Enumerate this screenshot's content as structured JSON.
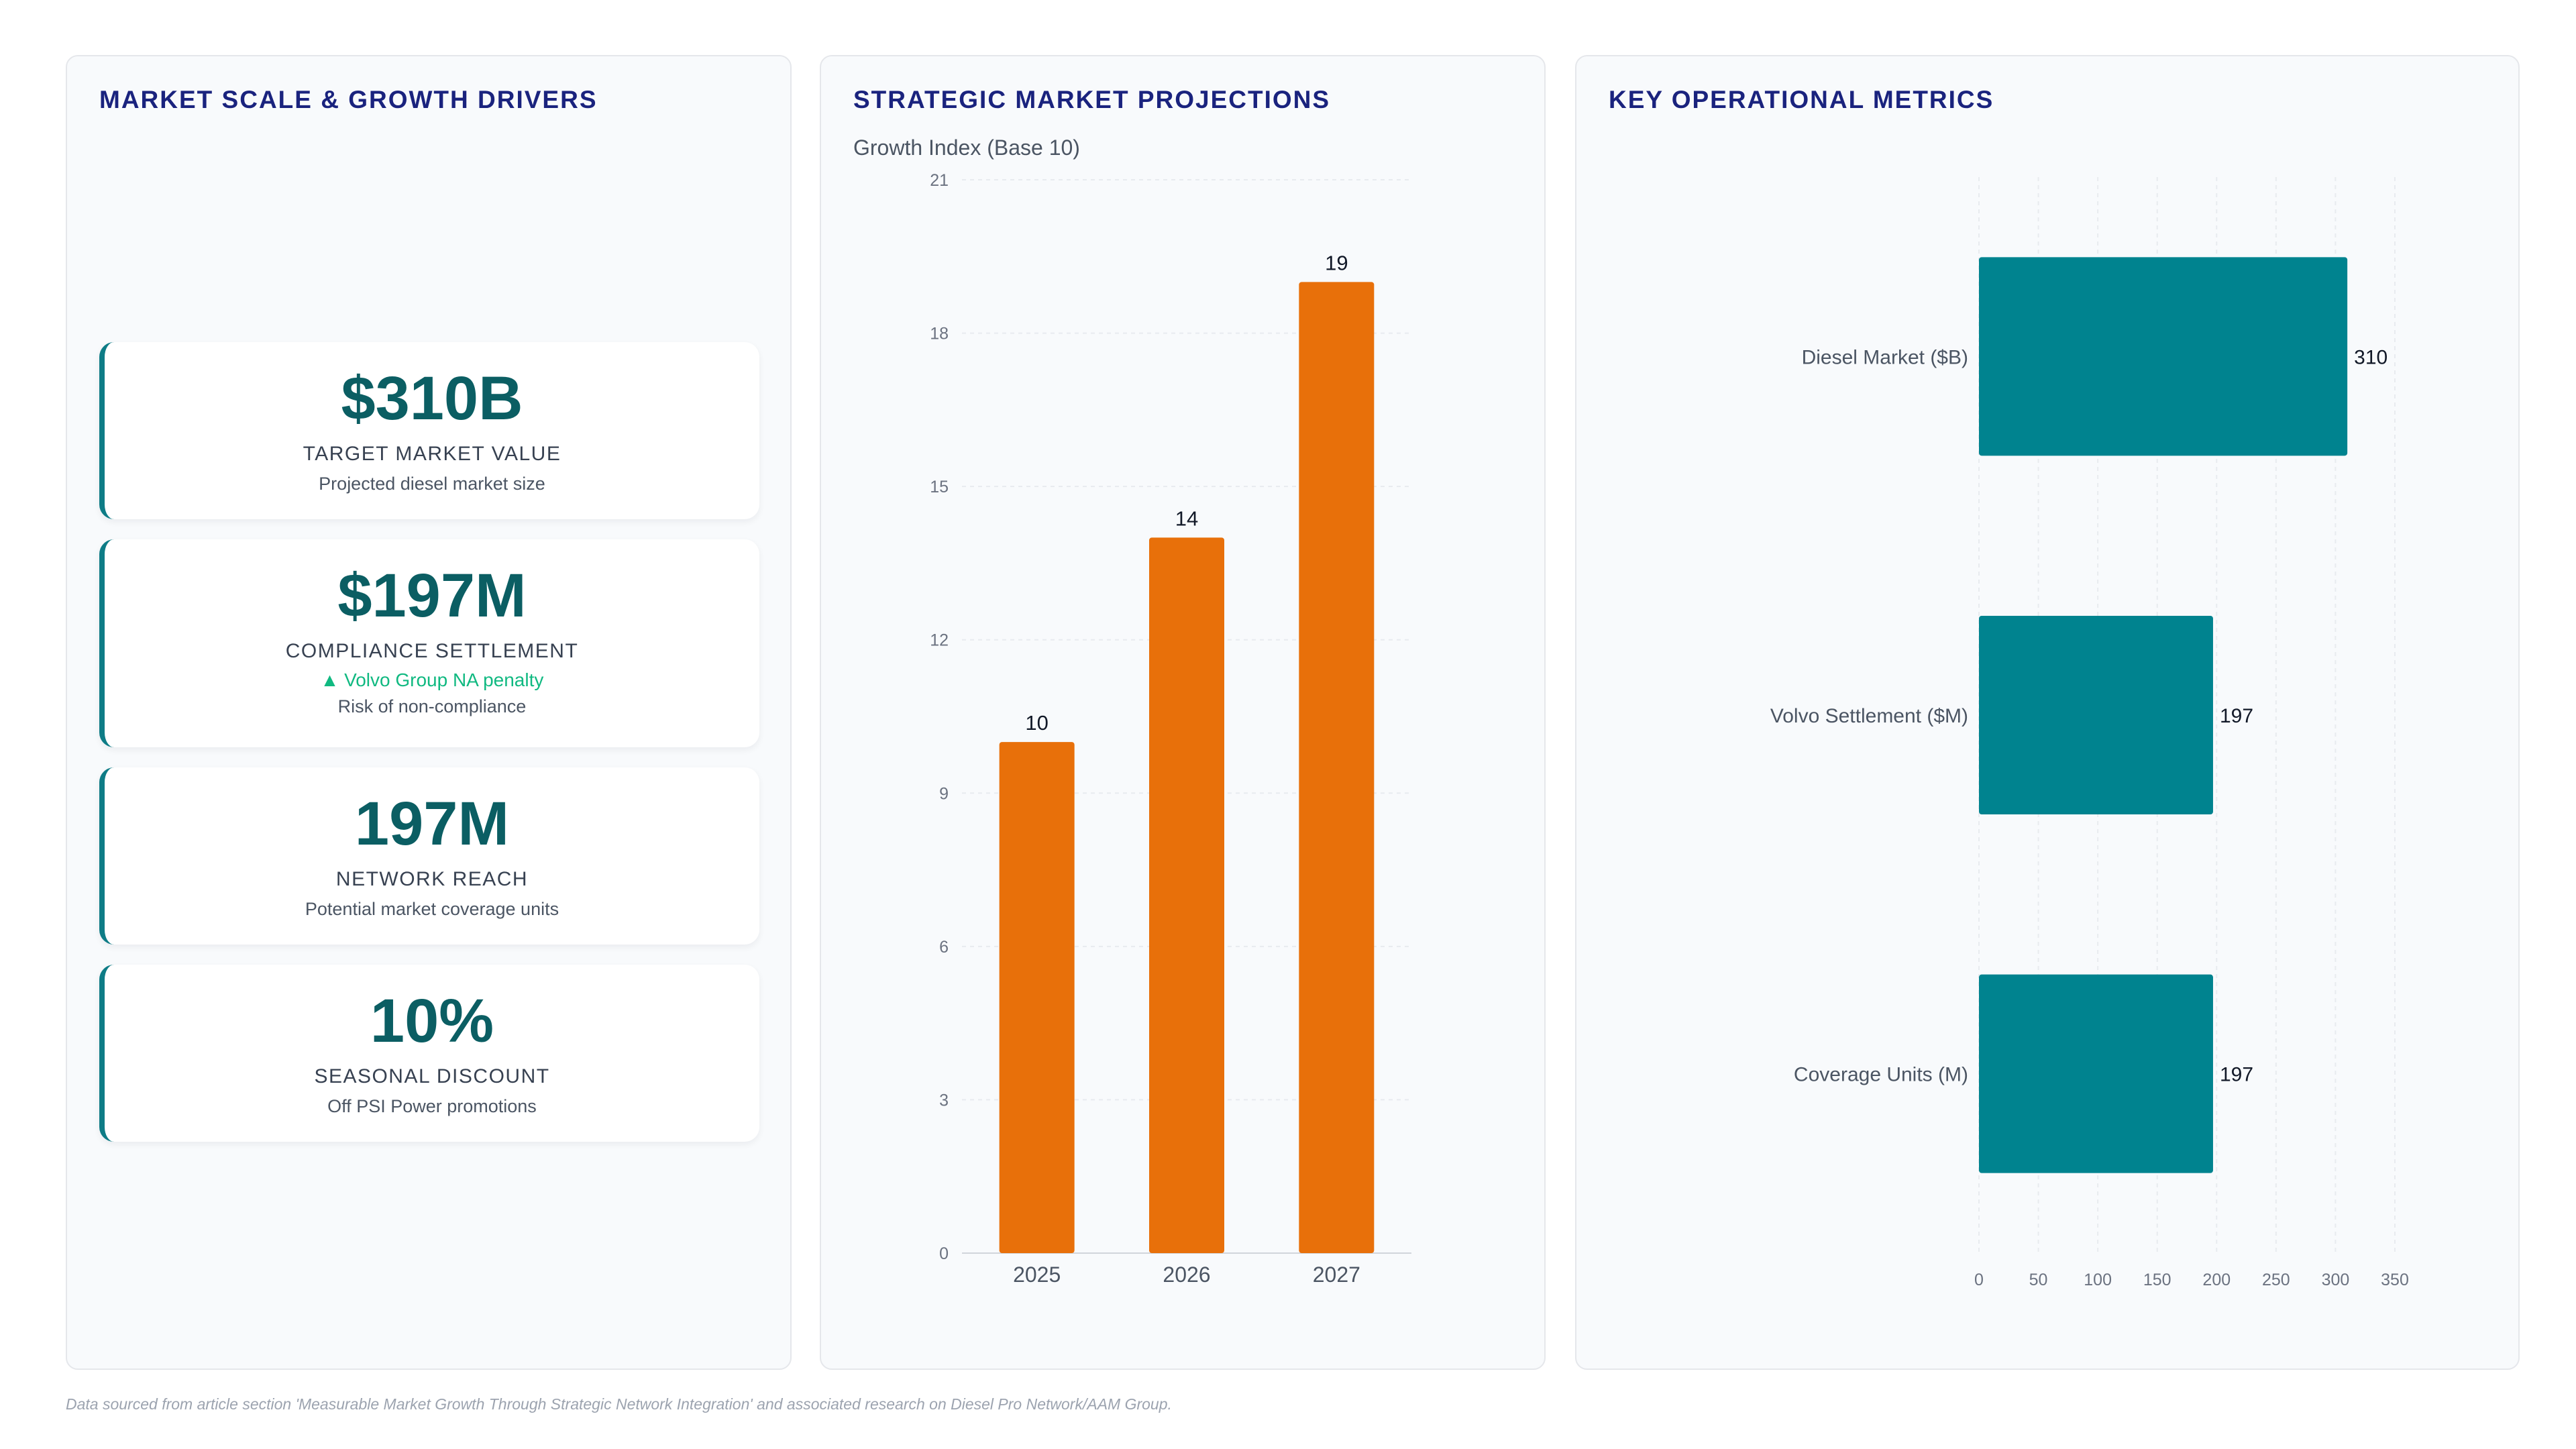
{
  "panels": {
    "left": {
      "title": "MARKET SCALE & GROWTH DRIVERS"
    },
    "mid": {
      "title": "STRATEGIC MARKET PROJECTIONS",
      "subtitle": "Growth Index (Base 10)"
    },
    "right": {
      "title": "KEY OPERATIONAL METRICS"
    }
  },
  "kpis": [
    {
      "value": "$310B",
      "label": "TARGET MARKET VALUE",
      "sub": "Projected diesel market size"
    },
    {
      "value": "$197M",
      "label": "COMPLIANCE SETTLEMENT",
      "trend": "▲ Volvo Group NA penalty",
      "sub": "Risk of non-compliance"
    },
    {
      "value": "197M",
      "label": "NETWORK REACH",
      "sub": "Potential market coverage units"
    },
    {
      "value": "10%",
      "label": "SEASONAL DISCOUNT",
      "sub": "Off PSI Power promotions"
    }
  ],
  "chart_data": [
    {
      "type": "bar",
      "orientation": "vertical",
      "title": "STRATEGIC MARKET PROJECTIONS",
      "subtitle": "Growth Index (Base 10)",
      "categories": [
        "2025",
        "2026",
        "2027"
      ],
      "values": [
        10,
        14,
        19
      ],
      "data_labels": [
        "10",
        "14",
        "19"
      ],
      "ylim": [
        0,
        21
      ],
      "yticks": [
        0,
        3,
        6,
        9,
        12,
        15,
        18,
        21
      ],
      "color": "#e8700a",
      "grid": true
    },
    {
      "type": "bar",
      "orientation": "horizontal",
      "title": "KEY OPERATIONAL METRICS",
      "categories": [
        "Diesel Market ($B)",
        "Volvo Settlement ($M)",
        "Coverage Units (M)"
      ],
      "values": [
        310,
        197,
        197
      ],
      "data_labels": [
        "310",
        "197",
        "197"
      ],
      "xlim": [
        0,
        350
      ],
      "xticks": [
        0,
        50,
        100,
        150,
        200,
        250,
        300,
        350
      ],
      "color": "#00838f",
      "grid": true
    }
  ],
  "footnote": "Data sourced from article section 'Measurable Market Growth Through Strategic Network Integration' and associated research on Diesel Pro Network/AAM Group."
}
